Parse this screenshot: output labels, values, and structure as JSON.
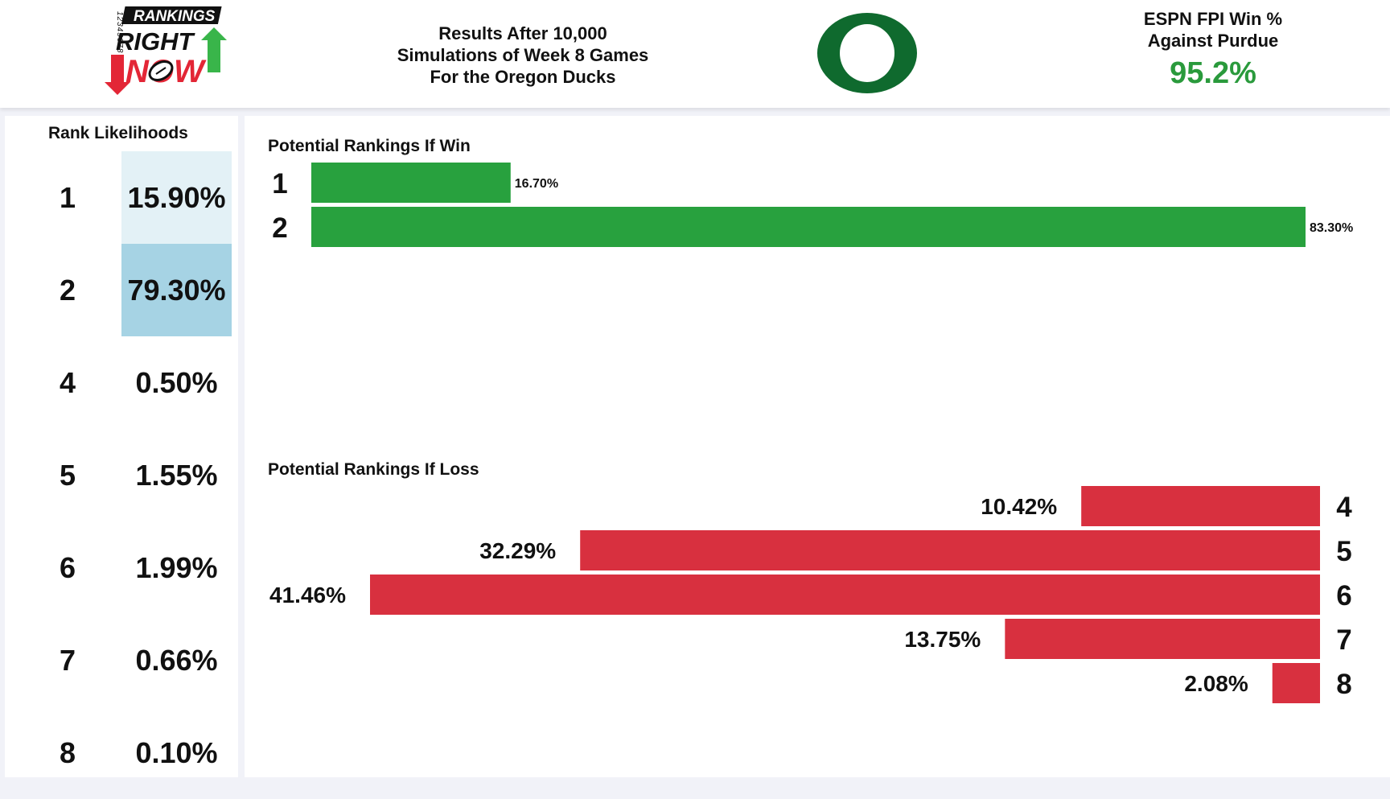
{
  "header": {
    "logo_text": [
      "RANKINGS",
      "RIGHT",
      "NOW"
    ],
    "logo_side_numbers": "12345678",
    "title_lines": [
      "Results After 10,000",
      "Simulations of Week 8 Games",
      "For the Oregon Ducks"
    ],
    "team_logo_icon": "oregon-o-logo",
    "fpi_label_lines": [
      "ESPN FPI Win %",
      "Against Purdue"
    ],
    "fpi_value": "95.2%"
  },
  "rank_likelihoods": {
    "title": "Rank Likelihoods",
    "rows": [
      {
        "rank": "1",
        "pct": "15.90%"
      },
      {
        "rank": "2",
        "pct": "79.30%"
      },
      {
        "rank": "4",
        "pct": "0.50%"
      },
      {
        "rank": "5",
        "pct": "1.55%"
      },
      {
        "rank": "6",
        "pct": "1.99%"
      },
      {
        "rank": "7",
        "pct": "0.66%"
      },
      {
        "rank": "8",
        "pct": "0.10%"
      }
    ]
  },
  "colors": {
    "win_bar": "#28a13e",
    "loss_bar": "#d8303f",
    "fpi_green": "#2a9a3c",
    "heat_high": "#a6d3e4",
    "heat_low": "#f2f8fb",
    "oregon_green": "#0f6a2e"
  },
  "chart_data": [
    {
      "type": "bar",
      "orientation": "horizontal",
      "title": "Potential Rankings If Win",
      "categories": [
        "1",
        "2"
      ],
      "values": [
        16.7,
        83.3
      ],
      "value_labels": [
        "16.70%",
        "83.30%"
      ],
      "unit": "%",
      "xlim": [
        0,
        83.3
      ]
    },
    {
      "type": "bar",
      "orientation": "horizontal",
      "title": "Potential Rankings If Loss",
      "categories": [
        "4",
        "5",
        "6",
        "7",
        "8"
      ],
      "values": [
        10.42,
        32.29,
        41.46,
        13.75,
        2.08
      ],
      "value_labels": [
        "10.42%",
        "32.29%",
        "41.46%",
        "13.75%",
        "2.08%"
      ],
      "unit": "%",
      "xlim": [
        0,
        41.46
      ],
      "direction": "right-to-left"
    }
  ]
}
